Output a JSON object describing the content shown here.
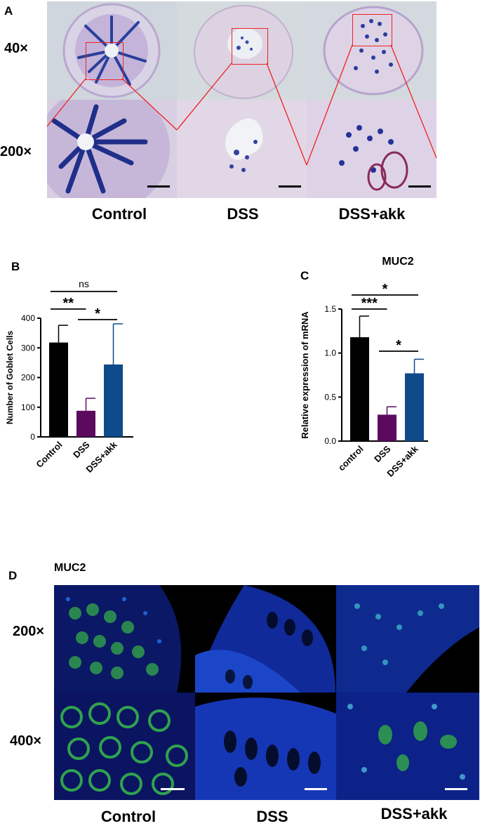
{
  "panel_labels": {
    "a": "A",
    "b": "B",
    "c": "C",
    "d": "D"
  },
  "panel_a": {
    "magnifications": [
      "40×",
      "200×"
    ],
    "groups": [
      "Control",
      "DSS",
      "DSS+akk"
    ]
  },
  "panel_d": {
    "title": "MUC2",
    "magnifications": [
      "200×",
      "400×"
    ],
    "groups": [
      "Control",
      "DSS",
      "DSS+akk"
    ]
  },
  "chart_data": [
    {
      "type": "bar",
      "panel": "B",
      "title": "",
      "categories": [
        "Control",
        "DSS",
        "DSS+akk"
      ],
      "values": [
        318,
        88,
        244
      ],
      "errors": [
        58,
        42,
        137
      ],
      "colors": [
        "#000000",
        "#5b0a5e",
        "#0f4a8a"
      ],
      "ylabel": "Number of Goblet Cells",
      "xlabel": "",
      "ylim": [
        0,
        400
      ],
      "yticks": [
        "0",
        "100",
        "200",
        "300",
        "400"
      ],
      "significance": [
        {
          "from": 0,
          "to": 2,
          "label": "ns"
        },
        {
          "from": 0,
          "to": 1,
          "label": "**"
        },
        {
          "from": 1,
          "to": 2,
          "label": "*"
        }
      ]
    },
    {
      "type": "bar",
      "panel": "C",
      "title": "MUC2",
      "categories": [
        "control",
        "DSS",
        "DSS+akk"
      ],
      "values": [
        1.18,
        0.3,
        0.77
      ],
      "errors": [
        0.24,
        0.09,
        0.16
      ],
      "colors": [
        "#000000",
        "#5b0a5e",
        "#0f4a8a"
      ],
      "ylabel": "Relative expression of mRNA",
      "xlabel": "",
      "ylim": [
        0,
        1.5
      ],
      "yticks": [
        "0.0",
        "0.5",
        "1.0",
        "1.5"
      ],
      "significance": [
        {
          "from": 0,
          "to": 2,
          "label": "*"
        },
        {
          "from": 0,
          "to": 1,
          "label": "***"
        },
        {
          "from": 1,
          "to": 2,
          "label": "*"
        }
      ]
    }
  ]
}
